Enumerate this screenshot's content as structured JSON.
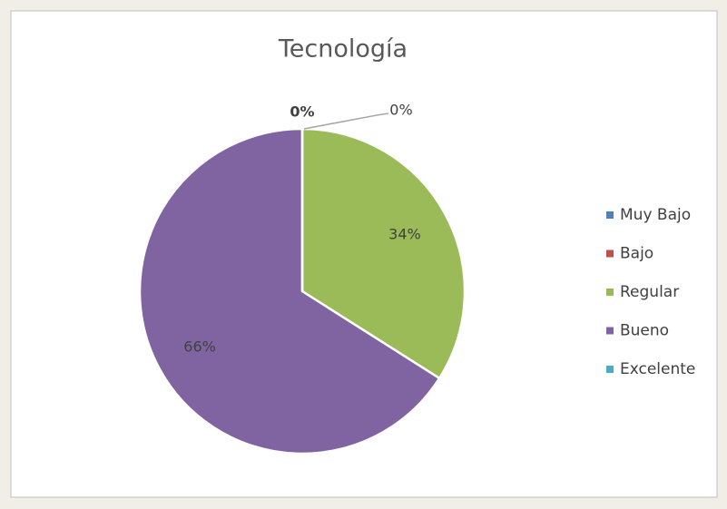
{
  "chart_data": {
    "type": "pie",
    "title": "Tecnología",
    "categories": [
      "Muy Bajo",
      "Bajo",
      "Regular",
      "Bueno",
      "Excelente"
    ],
    "values": [
      0,
      0,
      34,
      66,
      0
    ],
    "value_labels": [
      "0%",
      "0%",
      "34%",
      "66%",
      null
    ],
    "colors": [
      "#4f81bd",
      "#c0504d",
      "#9bbb59",
      "#8064a2",
      "#4bacc6"
    ],
    "legend": "right"
  }
}
